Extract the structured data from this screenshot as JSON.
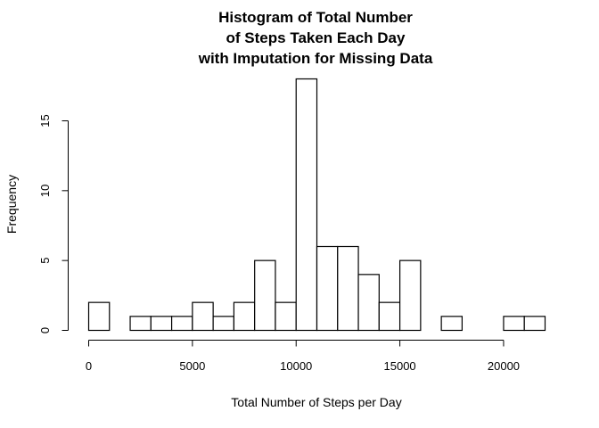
{
  "chart_data": {
    "type": "bar",
    "title_lines": [
      "Histogram of Total Number",
      "of Steps Taken Each Day",
      "with Imputation for Missing Data"
    ],
    "xlabel": "Total Number of Steps per Day",
    "ylabel": "Frequency",
    "bin_width": 1000,
    "bin_starts": [
      0,
      1000,
      2000,
      3000,
      4000,
      5000,
      6000,
      7000,
      8000,
      9000,
      10000,
      11000,
      12000,
      13000,
      14000,
      15000,
      16000,
      17000,
      18000,
      19000,
      20000,
      21000
    ],
    "values": [
      2,
      0,
      1,
      1,
      1,
      2,
      1,
      2,
      5,
      2,
      18,
      6,
      6,
      4,
      2,
      5,
      0,
      1,
      0,
      0,
      1,
      1
    ],
    "xlim": [
      0,
      22000
    ],
    "ylim": [
      0,
      18
    ],
    "x_ticks": [
      0,
      5000,
      10000,
      15000,
      20000
    ],
    "x_tick_labels": [
      "0",
      "5000",
      "10000",
      "15000",
      "20000"
    ],
    "y_ticks": [
      0,
      5,
      10,
      15
    ],
    "y_tick_labels": [
      "0",
      "5",
      "10",
      "15"
    ],
    "grid": false
  }
}
